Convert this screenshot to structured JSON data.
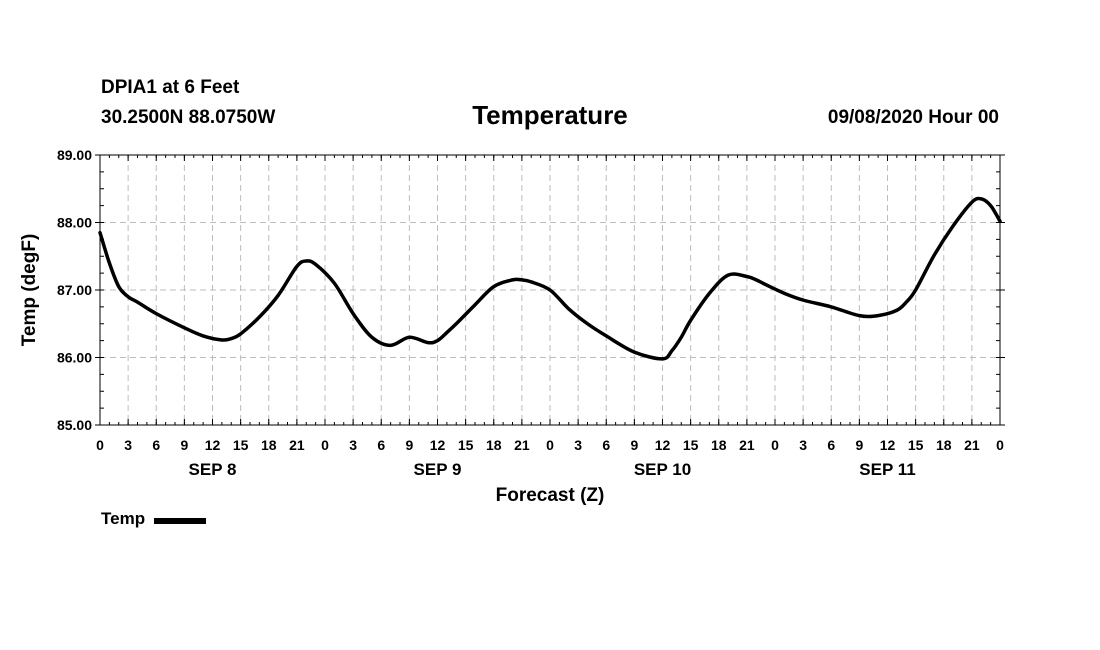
{
  "header": {
    "station": "DPIA1 at 6 Feet",
    "coords": "30.2500N 88.0750W",
    "title": "Temperature",
    "run_time": "09/08/2020 Hour 00"
  },
  "chart_data": {
    "type": "line",
    "title": "Temperature",
    "xlabel": "Forecast (Z)",
    "ylabel": "Temp (degF)",
    "ylim": [
      85,
      89
    ],
    "xlim": [
      0,
      96
    ],
    "x_unit": "hours from 09/08/2020 00Z",
    "grid": true,
    "legend": "bottom-left",
    "y_ticks": [
      "85.00",
      "86.00",
      "87.00",
      "88.00",
      "89.00"
    ],
    "x_ticks": [
      "0",
      "3",
      "6",
      "9",
      "12",
      "15",
      "18",
      "21",
      "0",
      "3",
      "6",
      "9",
      "12",
      "15",
      "18",
      "21",
      "0",
      "3",
      "6",
      "9",
      "12",
      "15",
      "18",
      "21",
      "0",
      "3",
      "6",
      "9",
      "12",
      "15",
      "18",
      "21",
      "0"
    ],
    "day_labels": [
      "SEP 8",
      "SEP 9",
      "SEP 10",
      "SEP 11"
    ],
    "series": [
      {
        "name": "Temp",
        "color": "#000000",
        "x": [
          0,
          1,
          2,
          3,
          4,
          6,
          9,
          11,
          13,
          14,
          15,
          17,
          19,
          21,
          22,
          23,
          25,
          27,
          29,
          31,
          33,
          35,
          36,
          37,
          38,
          40,
          42,
          44,
          45,
          46,
          48,
          50,
          52,
          54,
          57,
          60,
          61,
          62,
          63,
          65,
          67,
          69,
          70,
          71,
          73,
          75,
          78,
          81,
          83,
          85,
          86,
          87,
          89,
          91,
          93,
          94,
          95,
          96
        ],
        "values": [
          87.85,
          87.4,
          87.05,
          86.9,
          86.82,
          86.65,
          86.44,
          86.32,
          86.26,
          86.28,
          86.35,
          86.6,
          86.92,
          87.35,
          87.43,
          87.38,
          87.1,
          86.65,
          86.3,
          86.18,
          86.3,
          86.22,
          86.25,
          86.37,
          86.5,
          86.78,
          87.05,
          87.15,
          87.15,
          87.12,
          87.0,
          86.72,
          86.5,
          86.32,
          86.08,
          85.98,
          86.1,
          86.3,
          86.55,
          86.95,
          87.22,
          87.2,
          87.15,
          87.08,
          86.95,
          86.85,
          86.75,
          86.62,
          86.62,
          86.7,
          86.82,
          87.0,
          87.52,
          87.95,
          88.3,
          88.35,
          88.25,
          88.02
        ]
      }
    ]
  }
}
